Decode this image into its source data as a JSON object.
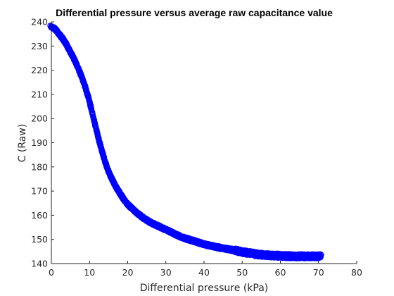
{
  "chart_data": {
    "type": "scatter",
    "title": "Differential pressure versus average raw capacitance value",
    "xlabel": "Differential pressure (kPa)",
    "ylabel": "C (Raw)",
    "xlim": [
      0,
      80
    ],
    "ylim": [
      140,
      240
    ],
    "xticks": [
      "0",
      "10",
      "20",
      "30",
      "40",
      "50",
      "60",
      "70",
      "80"
    ],
    "yticks": [
      "140",
      "150",
      "160",
      "170",
      "180",
      "190",
      "200",
      "210",
      "220",
      "230",
      "240"
    ],
    "grid": false,
    "legend": "none",
    "marker": "circle",
    "color": "#0000ff",
    "series": [
      {
        "x": [
          0,
          1,
          2,
          3,
          4,
          5,
          6,
          7,
          8,
          9,
          10,
          11,
          12,
          13,
          14,
          15,
          16,
          17,
          18,
          19,
          20,
          22,
          24,
          26,
          28,
          30,
          32,
          34,
          36,
          38,
          40,
          42,
          44,
          46,
          48,
          50,
          52,
          54,
          56,
          58,
          60,
          62,
          64,
          66,
          68,
          70.5
        ],
        "y": [
          238,
          237,
          235,
          233,
          230.5,
          227.5,
          224.5,
          221,
          217,
          212.5,
          207,
          200.5,
          194,
          188,
          182.5,
          178,
          174.5,
          171.5,
          169,
          166.5,
          164.5,
          161.5,
          159,
          157,
          155.5,
          154,
          152.5,
          151,
          150,
          149,
          148,
          147.3,
          146.6,
          146,
          145.5,
          144.8,
          144.3,
          143.8,
          143.5,
          143.3,
          143.2,
          143.1,
          143,
          143,
          143,
          143
        ]
      }
    ]
  }
}
